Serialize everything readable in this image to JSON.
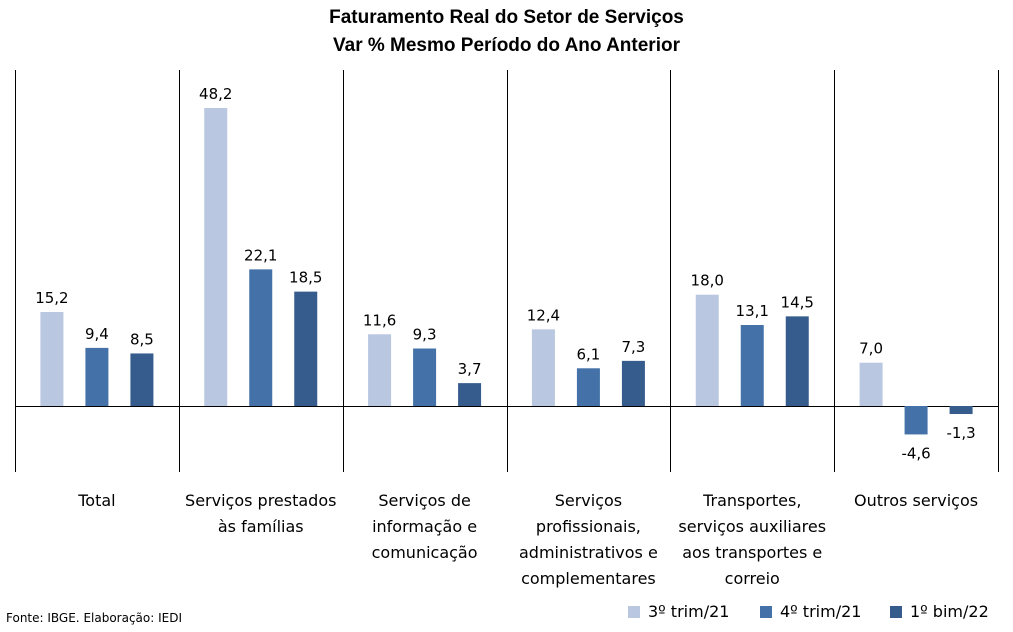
{
  "chart_data": {
    "type": "bar",
    "title": "Faturamento Real do Setor de Serviços",
    "subtitle": "Var % Mesmo Período do Ano Anterior",
    "categories": [
      [
        "Total"
      ],
      [
        "Serviços prestados",
        "às famílias"
      ],
      [
        "Serviços de",
        "informação e",
        "comunicação"
      ],
      [
        "Serviços",
        "profissionais,",
        "administrativos e",
        "complementares"
      ],
      [
        "Transportes,",
        "serviços auxiliares",
        "aos transportes e",
        "correio"
      ],
      [
        "Outros serviços"
      ]
    ],
    "series": [
      {
        "name": "3º trim/21",
        "color": "#b9c7e0",
        "values": [
          15.2,
          48.2,
          11.6,
          12.4,
          18.0,
          7.0
        ]
      },
      {
        "name": "4º trim/21",
        "color": "#4472a8",
        "values": [
          9.4,
          22.1,
          9.3,
          6.1,
          13.1,
          -4.6
        ]
      },
      {
        "name": "1º bim/22",
        "color": "#355c8c",
        "values": [
          8.5,
          18.5,
          3.7,
          7.3,
          14.5,
          -1.3
        ]
      }
    ],
    "value_labels": [
      [
        "15,2",
        "48,2",
        "11,6",
        "12,4",
        "18,0",
        "7,0"
      ],
      [
        "9,4",
        "22,1",
        "9,3",
        "6,1",
        "13,1",
        "-4,6"
      ],
      [
        "8,5",
        "18,5",
        "3,7",
        "7,3",
        "14,5",
        "-1,3"
      ]
    ],
    "ylim": [
      -8,
      52
    ],
    "grid": false,
    "legend_position": "bottom-right"
  },
  "source": "Fonte: IBGE. Elaboração: IEDI"
}
